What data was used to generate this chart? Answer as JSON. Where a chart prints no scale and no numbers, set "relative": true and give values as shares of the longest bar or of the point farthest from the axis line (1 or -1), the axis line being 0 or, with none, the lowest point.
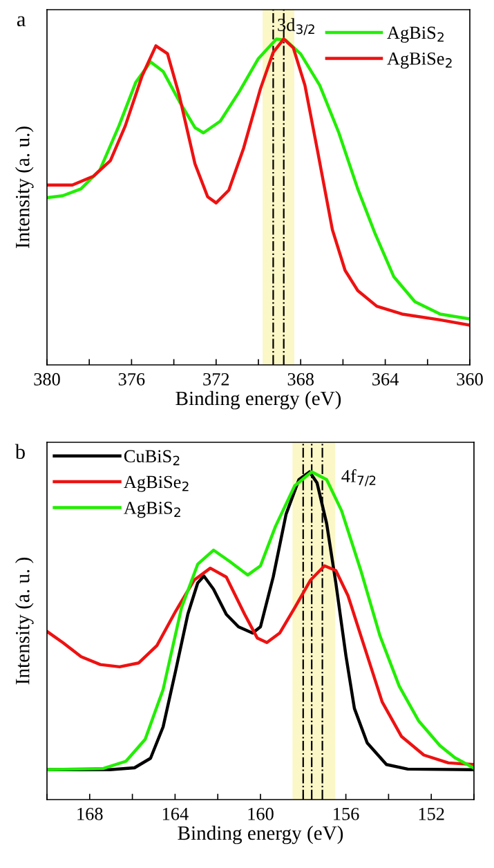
{
  "chart_data": [
    {
      "type": "line",
      "relative": true,
      "xlabel": "Binding energy (eV)",
      "ylabel": "Intensity (a. u.)",
      "xlim": [
        380,
        360
      ],
      "xticks": [
        380,
        {
          "value": 378,
          "label": null
        },
        376,
        {
          "value": 374,
          "label": null
        },
        372,
        {
          "value": 370,
          "label": null
        },
        368,
        {
          "value": 366,
          "label": null
        },
        364,
        {
          "value": 362,
          "label": null
        },
        360
      ],
      "legend": "top right",
      "grid": false,
      "marker": "none",
      "line_style": "solid",
      "series": [
        {
          "name": "AgBiS$_{2}$",
          "color": "#22ee00",
          "x": [
            380,
            379.26,
            378.4,
            377.5,
            376.6,
            375.8,
            375.1,
            374.5,
            373.75,
            373.0,
            372.6,
            371.8,
            370.9,
            370.0,
            369.15,
            368.7,
            368.0,
            367.1,
            366.2,
            365.3,
            364.5,
            363.6,
            362.6,
            361.4,
            360
          ],
          "values": [
            0.513,
            0.519,
            0.54,
            0.598,
            0.733,
            0.867,
            0.93,
            0.9,
            0.81,
            0.728,
            0.712,
            0.748,
            0.839,
            0.94,
            1.0,
            0.996,
            0.954,
            0.858,
            0.713,
            0.54,
            0.406,
            0.271,
            0.194,
            0.156,
            0.141
          ]
        },
        {
          "name": "AgBiSe$_{2}$",
          "color": "#ee1111",
          "x": [
            380,
            378.8,
            377.8,
            377.0,
            376.3,
            375.5,
            374.85,
            374.3,
            373.75,
            373.0,
            372.4,
            372.0,
            371.4,
            370.7,
            369.9,
            369.3,
            368.8,
            368.35,
            367.8,
            367.2,
            366.5,
            365.9,
            365.3,
            364.4,
            363.2,
            361.4,
            360
          ],
          "values": [
            0.552,
            0.552,
            0.579,
            0.627,
            0.733,
            0.887,
            0.979,
            0.955,
            0.829,
            0.617,
            0.516,
            0.497,
            0.536,
            0.665,
            0.848,
            0.959,
            1.0,
            0.973,
            0.858,
            0.656,
            0.415,
            0.29,
            0.228,
            0.18,
            0.156,
            0.138,
            0.122
          ]
        }
      ],
      "bands": [
        {
          "axis": "x",
          "from": 369.8,
          "to": 368.3,
          "color": "#fbf7c6"
        }
      ],
      "ref_lines": [
        {
          "axis": "x",
          "value": 369.3,
          "color": "#000000",
          "line_style": "dashdot"
        },
        {
          "axis": "x",
          "value": 368.8,
          "color": "#000000",
          "line_style": "dashdot"
        }
      ],
      "annotations": [
        "a",
        {
          "text": "3d$_{3/2}$",
          "x": 369.3,
          "y": 1.0
        }
      ]
    },
    {
      "type": "line",
      "relative": true,
      "xlabel": "Binding energy (eV)",
      "ylabel": "Intensity (a. u. )",
      "xlim": [
        170,
        150
      ],
      "xticks": [
        {
          "value": 170,
          "label": null
        },
        168,
        {
          "value": 166,
          "label": null
        },
        164,
        {
          "value": 162,
          "label": null
        },
        160,
        {
          "value": 158,
          "label": null
        },
        156,
        {
          "value": 154,
          "label": null
        },
        152,
        {
          "value": 150,
          "label": null
        }
      ],
      "legend": "top left",
      "grid": false,
      "marker": "none",
      "line_style": "solid",
      "series": [
        {
          "name": "CuBiS$_{2}$",
          "color": "#000000",
          "x": [
            170,
            167.06,
            165.9,
            165.15,
            164.56,
            163.97,
            163.4,
            162.94,
            162.65,
            162.2,
            161.6,
            161.03,
            160.37,
            160.0,
            159.4,
            158.8,
            158.2,
            157.7,
            157.35,
            156.9,
            156.47,
            156.0,
            155.6,
            155.0,
            154.1,
            153.1,
            150
          ],
          "values": [
            0.091,
            0.091,
            0.097,
            0.126,
            0.222,
            0.394,
            0.566,
            0.661,
            0.682,
            0.642,
            0.565,
            0.527,
            0.508,
            0.527,
            0.68,
            0.871,
            0.976,
            1.0,
            0.966,
            0.842,
            0.661,
            0.44,
            0.278,
            0.173,
            0.107,
            0.093,
            0.091
          ]
        },
        {
          "name": "AgBiSe$_{2}$",
          "color": "#ee1111",
          "x": [
            170,
            169.26,
            168.4,
            167.5,
            166.6,
            165.7,
            164.85,
            163.97,
            163.1,
            162.35,
            161.6,
            160.74,
            160.15,
            159.7,
            159.1,
            158.4,
            157.65,
            157.0,
            156.47,
            155.9,
            155.15,
            154.3,
            153.4,
            152.35,
            151.2,
            150
          ],
          "values": [
            0.513,
            0.479,
            0.436,
            0.412,
            0.405,
            0.417,
            0.47,
            0.575,
            0.67,
            0.706,
            0.679,
            0.565,
            0.493,
            0.479,
            0.508,
            0.585,
            0.67,
            0.713,
            0.699,
            0.622,
            0.47,
            0.298,
            0.193,
            0.136,
            0.112,
            0.107
          ]
        },
        {
          "name": "AgBiS$_{2}$",
          "color": "#22ee00",
          "x": [
            170,
            167.35,
            166.3,
            165.4,
            164.56,
            163.7,
            162.94,
            162.2,
            161.47,
            160.6,
            160.0,
            159.3,
            158.4,
            157.6,
            156.9,
            156.2,
            155.3,
            154.4,
            153.5,
            152.6,
            151.6,
            150.9,
            150
          ],
          "values": [
            0.091,
            0.095,
            0.117,
            0.184,
            0.336,
            0.585,
            0.718,
            0.761,
            0.728,
            0.685,
            0.713,
            0.833,
            0.957,
            1.0,
            0.976,
            0.881,
            0.699,
            0.499,
            0.346,
            0.241,
            0.165,
            0.128,
            0.096
          ]
        }
      ],
      "bands": [
        {
          "axis": "x",
          "from": 158.5,
          "to": 156.5,
          "color": "#fbf7c6"
        }
      ],
      "ref_lines": [
        {
          "axis": "x",
          "value": 158.0,
          "color": "#000000",
          "line_style": "dashdot"
        },
        {
          "axis": "x",
          "value": 157.6,
          "color": "#000000",
          "line_style": "dashdot"
        },
        {
          "axis": "x",
          "value": 157.1,
          "color": "#000000",
          "line_style": "dashdot"
        }
      ],
      "annotations": [
        "b",
        {
          "text": "4f$_{7/2}$",
          "x": 156.4,
          "y": 0.97
        }
      ]
    }
  ]
}
